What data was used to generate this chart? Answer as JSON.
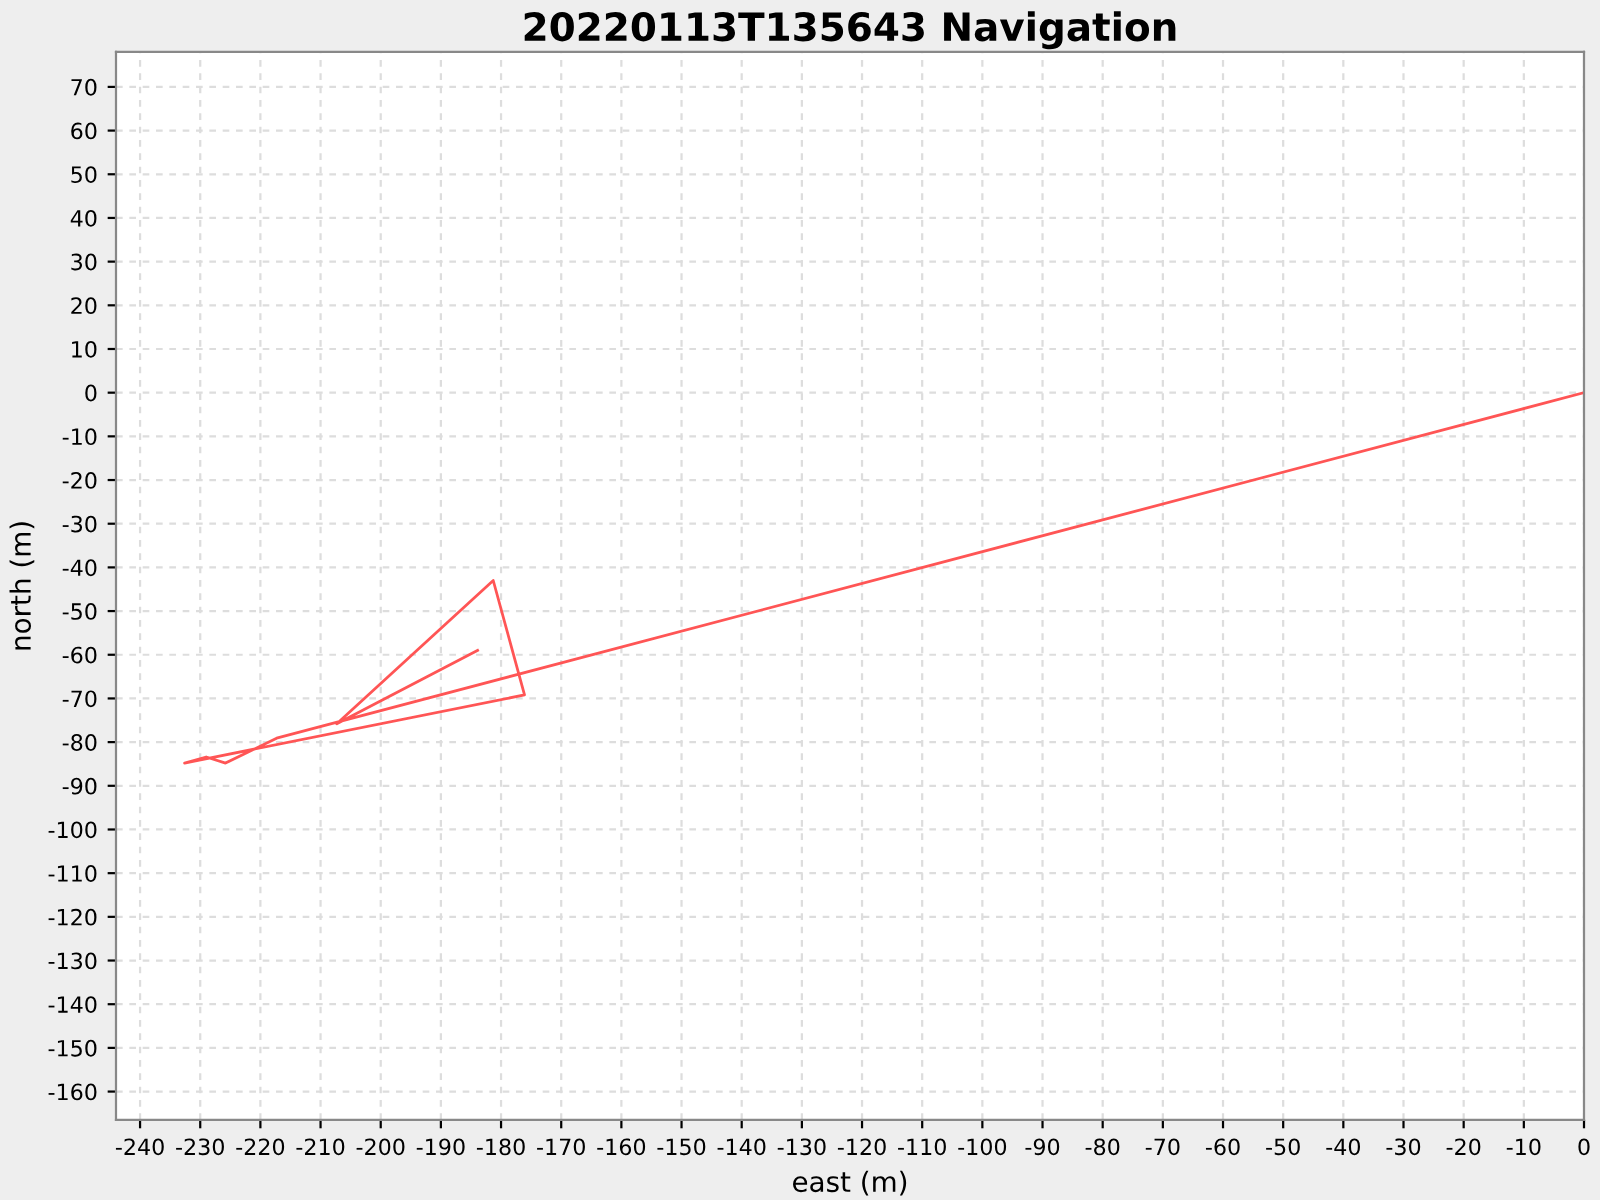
{
  "chart_data": {
    "type": "line",
    "title": "20220113T135643 Navigation",
    "xlabel": "east (m)",
    "ylabel": "north (m)",
    "series": [
      {
        "color": "#ff5555",
        "x": [
          0,
          -217.3,
          -225.8,
          -229.0,
          -232.6,
          -176.1,
          -181.3,
          -207.3,
          -183.9
        ],
        "values": [
          0,
          -79.1,
          -84.8,
          -83.4,
          -84.8,
          -69.2,
          -43.0,
          -75.8,
          -59.0
        ]
      }
    ],
    "xlim": [
      -244,
      0
    ],
    "ylim": [
      -166.5,
      78
    ],
    "xticks": [
      -240,
      -230,
      -220,
      -210,
      -200,
      -190,
      -180,
      -170,
      -160,
      -150,
      -140,
      -130,
      -120,
      -110,
      -100,
      -90,
      -80,
      -70,
      -60,
      -50,
      -40,
      -30,
      -20,
      -10,
      0
    ],
    "yticks": [
      -160,
      -150,
      -140,
      -130,
      -120,
      -110,
      -100,
      -90,
      -80,
      -70,
      -60,
      -50,
      -40,
      -30,
      -20,
      -10,
      0,
      10,
      20,
      30,
      40,
      50,
      60,
      70
    ],
    "grid": true,
    "legend": false,
    "marker": "none",
    "line_style": "solid"
  }
}
